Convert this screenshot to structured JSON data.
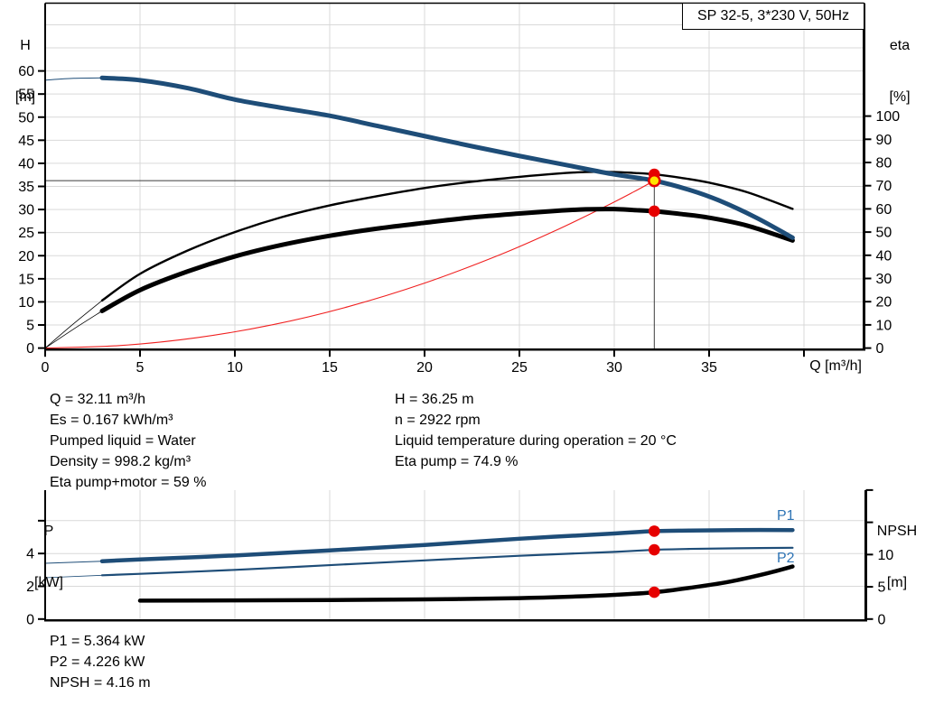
{
  "title_box": "SP 32-5, 3*230 V, 50Hz",
  "axes": {
    "top_left": [
      "H",
      "[m]"
    ],
    "top_right": [
      "eta",
      "[%]"
    ],
    "x_title": "Q [m³/h]",
    "bottom_left": [
      "P",
      "[kW]"
    ],
    "bottom_right": [
      "NPSH",
      "[m]"
    ]
  },
  "curve_labels": {
    "p1": "P1",
    "p2": "P2"
  },
  "info_left": [
    "Q = 32.11 m³/h",
    "Es = 0.167 kWh/m³",
    "Pumped liquid = Water",
    "Density = 998.2 kg/m³",
    "Eta pump+motor = 59 %"
  ],
  "info_right": [
    "H = 36.25 m",
    "n = 2922 rpm",
    "Liquid temperature during operation = 20 °C",
    "Eta pump = 74.9 %"
  ],
  "info_bottom": [
    "P1 = 5.364 kW",
    "P2 = 4.226 kW",
    "NPSH = 4.16 m"
  ],
  "colors": {
    "curve_blue": "#1E4D78",
    "label_blue": "#2E74B5",
    "curve_black": "#000000",
    "system_red": "#F02020",
    "marker_red": "#E60000",
    "duty_yellow": "#FFE400",
    "grid_gray": "#D9D9D9",
    "crosshair_gray": "#3C3C3C"
  },
  "chart_data": [
    {
      "type": "line",
      "title": "SP 32-5, 3*230 V, 50Hz",
      "xlabel": "Q [m³/h]",
      "ylabel_left": "H [m]",
      "ylabel_right": "eta [%]",
      "xlim": [
        0,
        43
      ],
      "x_ticks": [
        0,
        5,
        10,
        15,
        20,
        25,
        30,
        35,
        40
      ],
      "x_tick_labels": [
        "0",
        "5",
        "10",
        "15",
        "20",
        "25",
        "30",
        "35",
        ""
      ],
      "x_grid": [
        5,
        10,
        15,
        20,
        25,
        30,
        35,
        40
      ],
      "ylim_left": [
        0,
        74.7
      ],
      "left_ticks": [
        0,
        5,
        10,
        15,
        20,
        25,
        30,
        35,
        40,
        45,
        50,
        55,
        60
      ],
      "ylim_right": [
        0,
        149
      ],
      "right_ticks": [
        0,
        10,
        20,
        30,
        40,
        50,
        60,
        70,
        80,
        90,
        100
      ],
      "grid": true,
      "series": [
        {
          "name": "system-curve",
          "axis": "left",
          "color": "#F02020",
          "width": 1.1,
          "points": [
            [
              0,
              0
            ],
            [
              4,
              0.56
            ],
            [
              8,
              2.25
            ],
            [
              12,
              5.06
            ],
            [
              16,
              9.0
            ],
            [
              20,
              14.06
            ],
            [
              24,
              20.25
            ],
            [
              27,
              25.63
            ],
            [
              29.5,
              30.6
            ],
            [
              31,
              33.77
            ],
            [
              32.11,
              36.25
            ]
          ]
        },
        {
          "name": "eta-pump",
          "axis": "right",
          "color": "#000000",
          "width": 2.4,
          "thin_width": 0.8,
          "split_q": 3,
          "points": [
            [
              0,
              0
            ],
            [
              1.5,
              10.5
            ],
            [
              3,
              20.5
            ],
            [
              5,
              32
            ],
            [
              7.5,
              42
            ],
            [
              10,
              50
            ],
            [
              12.5,
              56.5
            ],
            [
              15,
              61.5
            ],
            [
              17.5,
              65.5
            ],
            [
              20,
              69
            ],
            [
              22.5,
              71.7
            ],
            [
              25,
              73.8
            ],
            [
              27,
              75.2
            ],
            [
              28.5,
              75.9
            ],
            [
              30,
              75.9
            ],
            [
              31,
              75.5
            ],
            [
              32.11,
              74.9
            ],
            [
              33.5,
              73.4
            ],
            [
              35,
              71.3
            ],
            [
              37,
              67.2
            ],
            [
              39.4,
              60.0
            ]
          ]
        },
        {
          "name": "eta-pump-motor",
          "axis": "right",
          "color": "#000000",
          "width": 5,
          "thin_width": 0.8,
          "split_q": 3,
          "points": [
            [
              0,
              0
            ],
            [
              1.5,
              8.2
            ],
            [
              3,
              16
            ],
            [
              5,
              25
            ],
            [
              7.5,
              33
            ],
            [
              10,
              39.5
            ],
            [
              12.5,
              44.5
            ],
            [
              15,
              48.4
            ],
            [
              17.5,
              51.5
            ],
            [
              20,
              54
            ],
            [
              22.5,
              56.3
            ],
            [
              25,
              58
            ],
            [
              27,
              59.2
            ],
            [
              28.5,
              59.8
            ],
            [
              30,
              59.9
            ],
            [
              31,
              59.5
            ],
            [
              32.11,
              59.0
            ],
            [
              33.5,
              57.8
            ],
            [
              35,
              56.2
            ],
            [
              37,
              52.8
            ],
            [
              39.4,
              46.4
            ]
          ]
        },
        {
          "name": "H",
          "axis": "left",
          "color": "#1E4D78",
          "width": 5,
          "thin_width": 1,
          "split_q": 3,
          "points": [
            [
              0,
              58.0
            ],
            [
              1.5,
              58.4
            ],
            [
              3,
              58.5
            ],
            [
              5,
              58.0
            ],
            [
              7.5,
              56.3
            ],
            [
              10,
              53.8
            ],
            [
              12.5,
              52.0
            ],
            [
              15,
              50.3
            ],
            [
              17.5,
              48.1
            ],
            [
              20,
              45.9
            ],
            [
              22.5,
              43.7
            ],
            [
              25,
              41.6
            ],
            [
              27.5,
              39.6
            ],
            [
              30,
              37.6
            ],
            [
              32.11,
              36.25
            ],
            [
              34,
              34.2
            ],
            [
              35.5,
              32.0
            ],
            [
              37.5,
              28.2
            ],
            [
              39.4,
              23.9
            ]
          ]
        }
      ],
      "crosshair": {
        "q": 32.11,
        "h": 36.25
      },
      "markers": [
        {
          "q": 32.11,
          "v": 74.9,
          "axis": "right",
          "style": "red",
          "name": "eta-pump-point"
        },
        {
          "q": 32.11,
          "v": 59.0,
          "axis": "right",
          "style": "red",
          "name": "eta-pump-motor-point"
        },
        {
          "q": 32.11,
          "v": 36.25,
          "axis": "left",
          "style": "duty",
          "name": "duty-point"
        }
      ]
    },
    {
      "type": "line",
      "ylabel_left": "P [kW]",
      "ylabel_right": "NPSH [m]",
      "xlim": [
        0,
        43
      ],
      "x_grid": [
        5,
        10,
        15,
        20,
        25,
        30,
        35,
        40
      ],
      "ylim_left": [
        0,
        7.9
      ],
      "left_ticks": [
        0,
        2,
        4,
        6
      ],
      "left_tick_labels": [
        "0",
        "2",
        "4",
        ""
      ],
      "ylim_right": [
        0,
        20
      ],
      "right_ticks": [
        0,
        5,
        10,
        15,
        20
      ],
      "right_tick_labels": [
        "0",
        "5",
        "10",
        "",
        ""
      ],
      "grid": true,
      "series": [
        {
          "name": "P2",
          "axis": "left",
          "color": "#1E4D78",
          "width": 2.2,
          "thin_width": 0.8,
          "split_q": 3,
          "label": "P2",
          "points": [
            [
              0,
              2.52
            ],
            [
              3,
              2.67
            ],
            [
              5,
              2.76
            ],
            [
              10,
              3.0
            ],
            [
              15,
              3.29
            ],
            [
              20,
              3.58
            ],
            [
              25,
              3.86
            ],
            [
              30,
              4.1
            ],
            [
              32.11,
              4.226
            ],
            [
              34,
              4.28
            ],
            [
              36.5,
              4.32
            ],
            [
              39.4,
              4.35
            ]
          ]
        },
        {
          "name": "P1",
          "axis": "left",
          "color": "#1E4D78",
          "width": 4.5,
          "thin_width": 1,
          "split_q": 3,
          "label": "P1",
          "points": [
            [
              0,
              3.4
            ],
            [
              3,
              3.53
            ],
            [
              5,
              3.64
            ],
            [
              10,
              3.88
            ],
            [
              15,
              4.19
            ],
            [
              20,
              4.52
            ],
            [
              25,
              4.9
            ],
            [
              30,
              5.22
            ],
            [
              32.11,
              5.364
            ],
            [
              34,
              5.4
            ],
            [
              36.5,
              5.43
            ],
            [
              39.4,
              5.43
            ]
          ]
        },
        {
          "name": "NPSH",
          "axis": "right",
          "color": "#000000",
          "width": 4.5,
          "thin_width": 0.8,
          "split_q": 3,
          "points": [
            [
              0,
              2.8
            ],
            [
              5,
              2.85
            ],
            [
              10,
              2.9
            ],
            [
              15,
              2.95
            ],
            [
              20,
              3.05
            ],
            [
              25,
              3.25
            ],
            [
              28,
              3.5
            ],
            [
              30,
              3.75
            ],
            [
              32.11,
              4.16
            ],
            [
              34,
              4.85
            ],
            [
              36,
              5.75
            ],
            [
              38,
              7.05
            ],
            [
              39.4,
              8.15
            ]
          ]
        }
      ],
      "markers": [
        {
          "q": 32.11,
          "v": 5.364,
          "axis": "left",
          "style": "red",
          "name": "p1-point"
        },
        {
          "q": 32.11,
          "v": 4.226,
          "axis": "left",
          "style": "red",
          "name": "p2-point"
        },
        {
          "q": 32.11,
          "v": 4.16,
          "axis": "right",
          "style": "red",
          "name": "npsh-point"
        }
      ]
    }
  ]
}
